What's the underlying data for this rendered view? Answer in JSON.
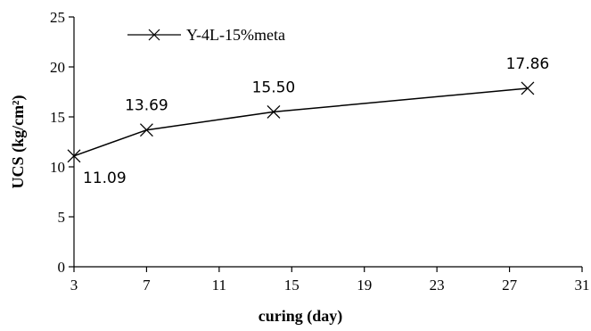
{
  "chart_data": {
    "type": "line",
    "title": "",
    "xlabel": "curing (day)",
    "ylabel": "UCS (kg/cm²)",
    "xlim": [
      3,
      31
    ],
    "ylim": [
      0,
      25
    ],
    "x_ticks": [
      3,
      7,
      11,
      15,
      19,
      23,
      27,
      31
    ],
    "y_ticks": [
      0,
      5,
      10,
      15,
      20,
      25
    ],
    "x_tick_labels": [
      "3",
      "7",
      "11",
      "15",
      "19",
      "23",
      "27",
      "31"
    ],
    "y_tick_labels": [
      "0",
      "5",
      "10",
      "15",
      "20",
      "25"
    ],
    "grid": false,
    "legend_position": "top-left",
    "marker": "x",
    "series": [
      {
        "name": "Y-4L-15%meta",
        "x": [
          3,
          7,
          14,
          28
        ],
        "y": [
          11.09,
          13.69,
          15.5,
          17.86
        ],
        "labels": [
          "11.09",
          "13.69",
          "15.50",
          "17.86"
        ],
        "color": "#000000"
      }
    ]
  }
}
